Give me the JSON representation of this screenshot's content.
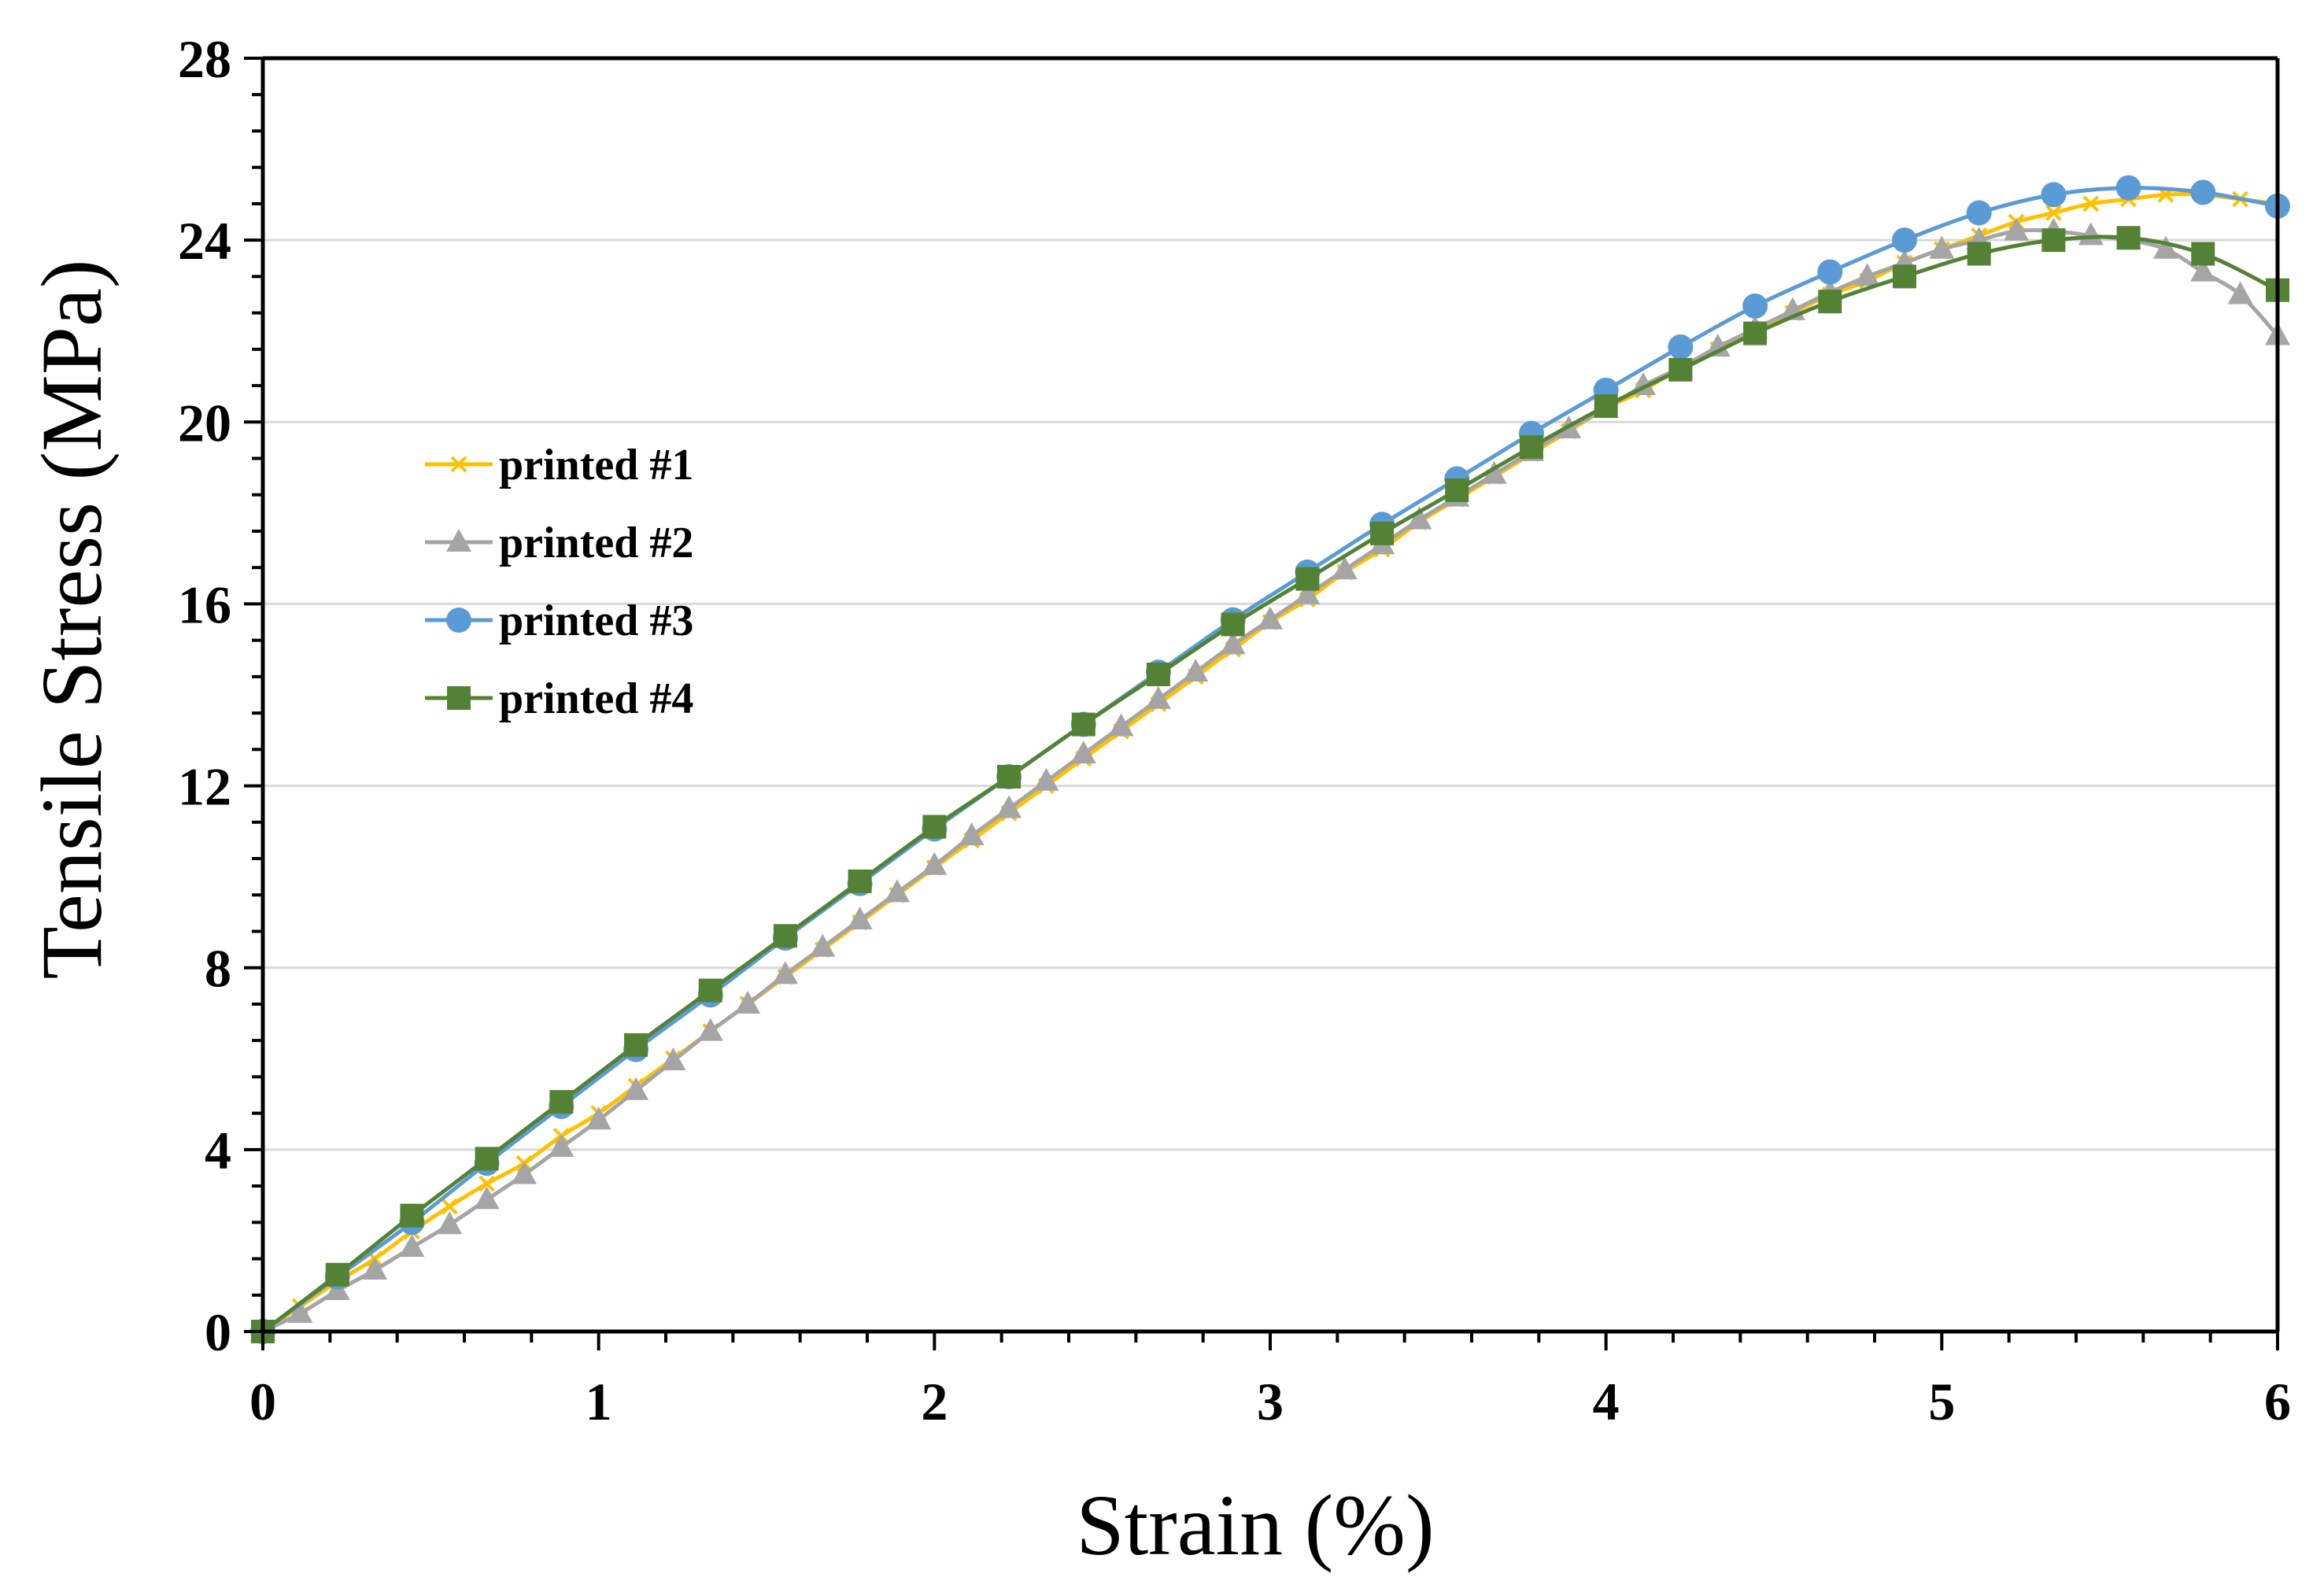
{
  "chart_data": {
    "type": "line",
    "title": "",
    "xlabel": "Strain (%)",
    "ylabel": "Tensile Stress (MPa)",
    "xlim": [
      0,
      6
    ],
    "ylim": [
      0,
      28
    ],
    "xticks": [
      0,
      1,
      2,
      3,
      4,
      5,
      6
    ],
    "yticks": [
      0,
      4,
      8,
      12,
      16,
      20,
      24,
      28
    ],
    "xtick_labels": [
      "0",
      "1",
      "2",
      "3",
      "4",
      "5",
      "6"
    ],
    "ytick_labels": [
      "0",
      "4",
      "8",
      "12",
      "16",
      "20",
      "24",
      "28"
    ],
    "grid": "horizontal",
    "legend_position": "upper-left",
    "series": [
      {
        "name": "printed #1",
        "color": "#FFC000",
        "marker": "x",
        "x": [
          0,
          0.111,
          0.222,
          0.333,
          0.444,
          0.556,
          0.667,
          0.778,
          0.889,
          1.0,
          1.111,
          1.222,
          1.333,
          1.444,
          1.556,
          1.667,
          1.778,
          1.889,
          2.0,
          2.111,
          2.222,
          2.333,
          2.444,
          2.556,
          2.667,
          2.778,
          2.889,
          3.0,
          3.111,
          3.222,
          3.333,
          3.444,
          3.556,
          3.667,
          3.778,
          3.889,
          4.0,
          4.111,
          4.222,
          4.333,
          4.444,
          4.556,
          4.667,
          4.778,
          4.889,
          5.0,
          5.111,
          5.222,
          5.333,
          5.444,
          5.556,
          5.667,
          5.778,
          5.889,
          6.0
        ],
        "y": [
          0,
          0.55,
          1.1,
          1.6,
          2.2,
          2.75,
          3.25,
          3.7,
          4.3,
          4.8,
          5.4,
          6.0,
          6.6,
          7.2,
          7.8,
          8.4,
          9.0,
          9.6,
          10.2,
          10.8,
          11.4,
          12.0,
          12.6,
          13.2,
          13.8,
          14.4,
          15.0,
          15.6,
          16.1,
          16.7,
          17.2,
          17.8,
          18.3,
          18.8,
          19.3,
          19.8,
          20.3,
          20.7,
          21.2,
          21.6,
          22.0,
          22.4,
          22.8,
          23.1,
          23.5,
          23.8,
          24.1,
          24.4,
          24.6,
          24.8,
          24.9,
          25.0,
          25.0,
          24.9,
          24.8
        ]
      },
      {
        "name": "printed #2",
        "color": "#A5A5A5",
        "marker": "triangle",
        "x": [
          0,
          0.111,
          0.222,
          0.333,
          0.444,
          0.556,
          0.667,
          0.778,
          0.889,
          1.0,
          1.111,
          1.222,
          1.333,
          1.444,
          1.556,
          1.667,
          1.778,
          1.889,
          2.0,
          2.111,
          2.222,
          2.333,
          2.444,
          2.556,
          2.667,
          2.778,
          2.889,
          3.0,
          3.111,
          3.222,
          3.333,
          3.444,
          3.556,
          3.667,
          3.778,
          3.889,
          4.0,
          4.111,
          4.222,
          4.333,
          4.444,
          4.556,
          4.667,
          4.778,
          4.889,
          5.0,
          5.111,
          5.222,
          5.333,
          5.444,
          5.556,
          5.667,
          5.778,
          5.889,
          6.0
        ],
        "y": [
          0,
          0.4,
          0.9,
          1.35,
          1.85,
          2.35,
          2.9,
          3.45,
          4.05,
          4.65,
          5.3,
          5.95,
          6.6,
          7.2,
          7.85,
          8.45,
          9.05,
          9.65,
          10.25,
          10.9,
          11.5,
          12.1,
          12.7,
          13.3,
          13.9,
          14.5,
          15.1,
          15.65,
          16.2,
          16.75,
          17.3,
          17.85,
          18.35,
          18.85,
          19.35,
          19.85,
          20.3,
          20.8,
          21.2,
          21.65,
          22.05,
          22.45,
          22.85,
          23.2,
          23.5,
          23.8,
          24.0,
          24.2,
          24.2,
          24.1,
          24.0,
          23.8,
          23.3,
          22.8,
          21.9
        ]
      },
      {
        "name": "printed #3",
        "color": "#5B9BD5",
        "marker": "circle",
        "x": [
          0,
          0.222,
          0.444,
          0.667,
          0.889,
          1.111,
          1.333,
          1.556,
          1.778,
          2.0,
          2.222,
          2.444,
          2.667,
          2.889,
          3.111,
          3.333,
          3.556,
          3.778,
          4.0,
          4.222,
          4.444,
          4.667,
          4.889,
          5.111,
          5.333,
          5.556,
          5.778,
          6.0
        ],
        "y": [
          0,
          1.2,
          2.4,
          3.7,
          4.95,
          6.2,
          7.4,
          8.65,
          9.85,
          11.05,
          12.2,
          13.35,
          14.5,
          15.65,
          16.7,
          17.75,
          18.75,
          19.75,
          20.7,
          21.65,
          22.55,
          23.3,
          24.0,
          24.6,
          25.0,
          25.15,
          25.05,
          24.75
        ]
      },
      {
        "name": "printed #4",
        "color": "#548235",
        "marker": "square",
        "x": [
          0,
          0.222,
          0.444,
          0.667,
          0.889,
          1.111,
          1.333,
          1.556,
          1.778,
          2.0,
          2.222,
          2.444,
          2.667,
          2.889,
          3.111,
          3.333,
          3.556,
          3.778,
          4.0,
          4.222,
          4.444,
          4.667,
          4.889,
          5.111,
          5.333,
          5.556,
          5.778,
          6.0
        ],
        "y": [
          0,
          1.25,
          2.55,
          3.8,
          5.05,
          6.3,
          7.5,
          8.7,
          9.9,
          11.1,
          12.2,
          13.35,
          14.45,
          15.55,
          16.55,
          17.55,
          18.5,
          19.45,
          20.35,
          21.15,
          21.95,
          22.65,
          23.2,
          23.7,
          24.0,
          24.05,
          23.7,
          22.9
        ]
      }
    ]
  }
}
